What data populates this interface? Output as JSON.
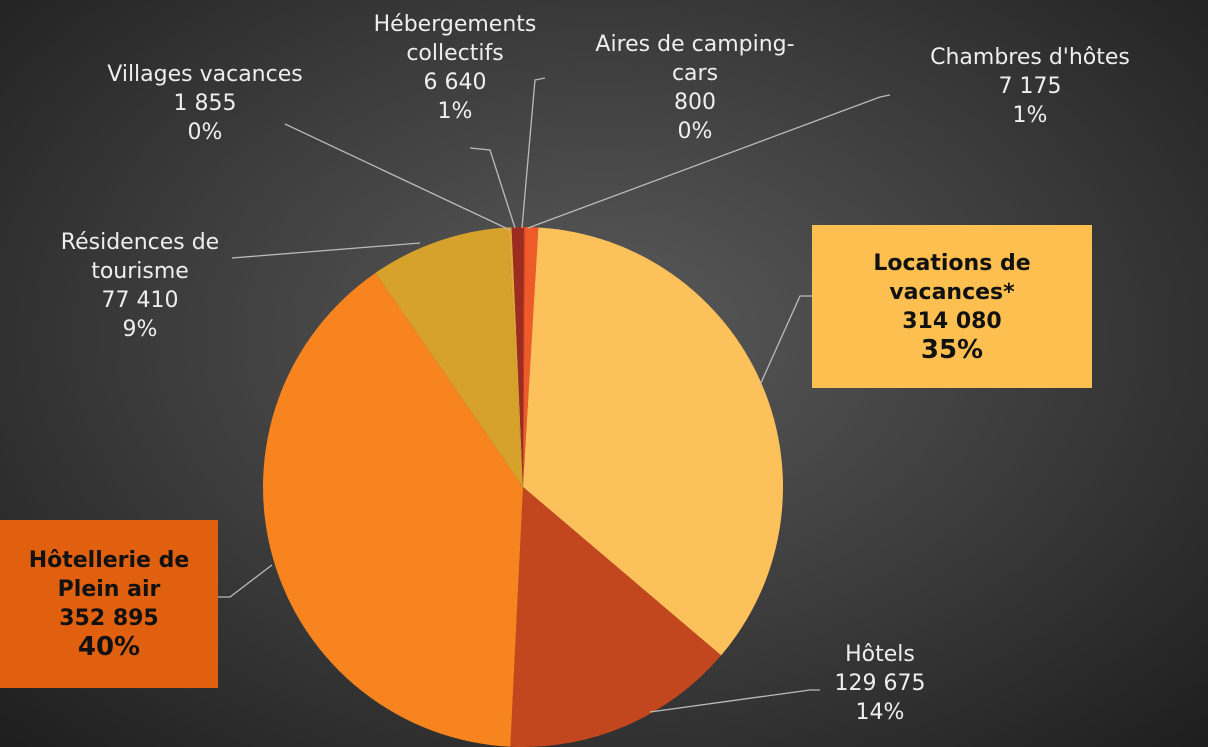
{
  "chart_data": {
    "type": "pie",
    "categories": [
      "Aires de camping-cars",
      "Chambres d'hôtes",
      "Locations de vacances*",
      "Hôtels",
      "Hôtellerie de Plein air",
      "Résidences de tourisme",
      "Villages vacances",
      "Hébergements collectifs"
    ],
    "values": [
      800,
      7175,
      314080,
      129675,
      352895,
      77410,
      1855,
      6640
    ],
    "value_labels": [
      "800",
      "7 175",
      "314 080",
      "129 675",
      "352 895",
      "77 410",
      "1 855",
      "6 640"
    ],
    "percent_labels": [
      "0%",
      "1%",
      "35%",
      "14%",
      "40%",
      "9%",
      "0%",
      "1%"
    ],
    "colors": [
      "#e8431f",
      "#ee5a28",
      "#fcc15a",
      "#c2471f",
      "#f7841e",
      "#d6a22c",
      "#e3a535",
      "#9b2c1f"
    ]
  }
}
